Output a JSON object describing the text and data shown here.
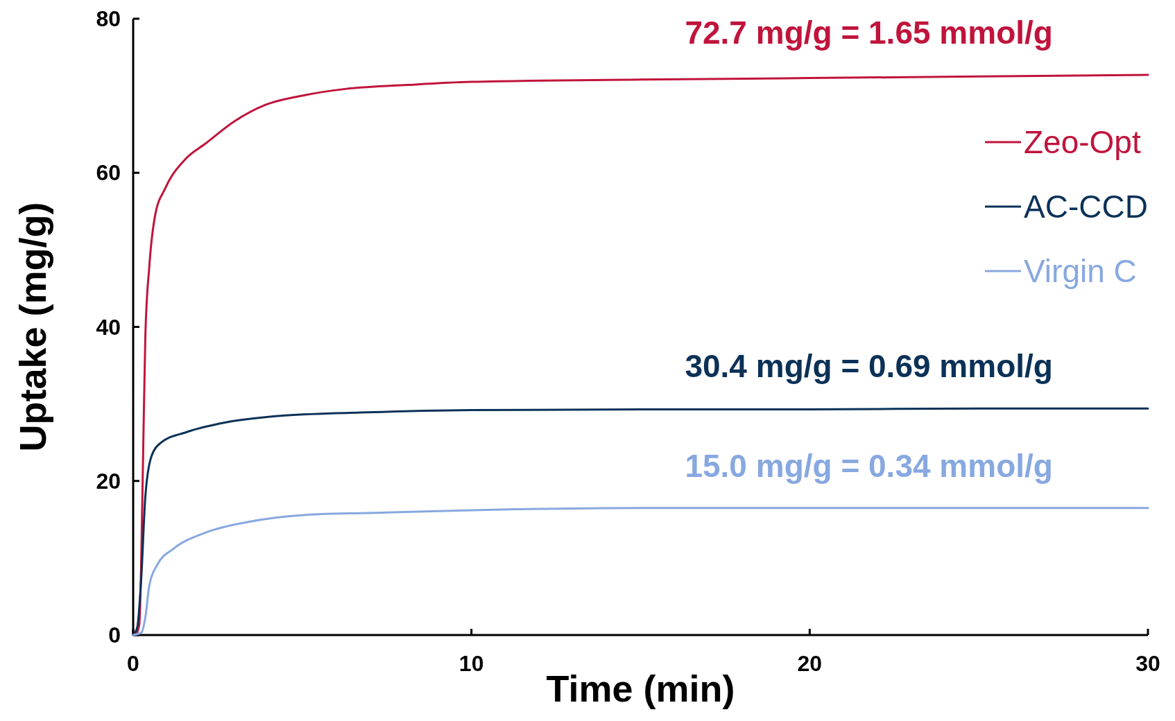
{
  "chart_data": {
    "type": "line",
    "xlabel": "Time (min)",
    "ylabel": "Uptake (mg/g)",
    "xlim": [
      0,
      30
    ],
    "ylim": [
      0,
      80
    ],
    "xticks": [
      0,
      10,
      20,
      30
    ],
    "yticks": [
      0,
      20,
      40,
      60,
      80
    ],
    "grid": false,
    "legend": "top right",
    "marker": "none",
    "line_style": "solid",
    "series": [
      {
        "name": "Zeo-Opt",
        "color": "#c0143c",
        "x": [
          0,
          0.06,
          0.18,
          0.24,
          0.3,
          0.36,
          0.48,
          0.65,
          0.95,
          1.55,
          2.14,
          3.0,
          3.9,
          5.1,
          6.3,
          8.1,
          10,
          15,
          20,
          25,
          30
        ],
        "values": [
          0,
          0,
          1.3,
          10,
          25,
          38.8,
          48,
          54.5,
          58,
          61.8,
          63.8,
          66.7,
          68.8,
          70.1,
          70.9,
          71.4,
          71.8,
          72.1,
          72.3,
          72.5,
          72.7
        ]
      },
      {
        "name": "AC-CCD",
        "color": "#0b3157",
        "x": [
          0,
          0.12,
          0.24,
          0.36,
          0.54,
          0.83,
          1.55,
          2.74,
          4.5,
          6.9,
          10,
          15,
          20,
          25,
          30
        ],
        "values": [
          0,
          1,
          7.5,
          18,
          23.2,
          25,
          26.3,
          27.6,
          28.5,
          28.9,
          29.2,
          29.3,
          29.3,
          29.4,
          29.4
        ]
      },
      {
        "name": "Virgin C",
        "color": "#87a8e0",
        "x": [
          0,
          0.24,
          0.36,
          0.48,
          0.71,
          1.19,
          2.14,
          3.3,
          5.1,
          7.5,
          10,
          15,
          20,
          25,
          30
        ],
        "values": [
          0,
          0.3,
          2.3,
          6.5,
          9.1,
          11.2,
          13.3,
          14.6,
          15.6,
          15.9,
          16.2,
          16.5,
          16.5,
          16.5,
          16.5
        ]
      }
    ],
    "annotations": [
      "72.7 mg/g = 1.65 mmol/g",
      "30.4 mg/g = 0.69 mmol/g",
      "15.0 mg/g = 0.34 mmol/g"
    ]
  }
}
